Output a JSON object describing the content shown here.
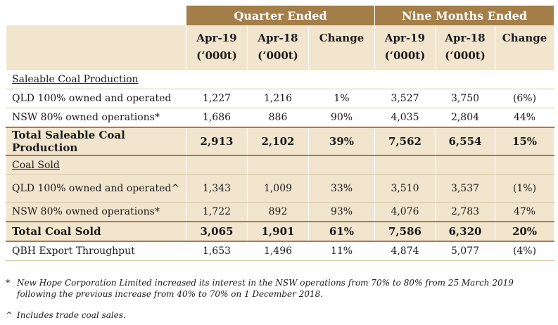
{
  "header": {
    "quarter_ended": "Quarter Ended",
    "nine_months_ended": "Nine Months Ended",
    "columns": [
      {
        "line1": "Apr-19",
        "line2": "(‘000t)"
      },
      {
        "line1": "Apr-18",
        "line2": "(‘000t)"
      },
      {
        "line1": "Change",
        "line2": ""
      },
      {
        "line1": "Apr-19",
        "line2": "(‘000t)"
      },
      {
        "line1": "Apr-18",
        "line2": "(‘000t)"
      },
      {
        "line1": "Change",
        "line2": ""
      }
    ]
  },
  "sections": {
    "saleable_heading": "Saleable Coal Production",
    "coal_sold_heading": "Coal Sold"
  },
  "rows": {
    "prod_qld": {
      "label": "QLD 100% owned and operated",
      "values": [
        "1,227",
        "1,216",
        "1%",
        "3,527",
        "3,750",
        "(6%)"
      ]
    },
    "prod_nsw": {
      "label": "NSW  80% owned operations*",
      "values": [
        "1,686",
        "886",
        "90%",
        "4,035",
        "2,804",
        "44%"
      ]
    },
    "prod_total": {
      "label": "Total Saleable Coal Production",
      "values": [
        "2,913",
        "2,102",
        "39%",
        "7,562",
        "6,554",
        "15%"
      ]
    },
    "sold_qld": {
      "label": "QLD 100% owned and operated^",
      "values": [
        "1,343",
        "1,009",
        "33%",
        "3,510",
        "3,537",
        "(1%)"
      ]
    },
    "sold_nsw": {
      "label": "NSW  80% owned operations*",
      "values": [
        "1,722",
        "892",
        "93%",
        "4,076",
        "2,783",
        "47%"
      ]
    },
    "sold_total": {
      "label": "Total Coal Sold",
      "values": [
        "3,065",
        "1,901",
        "61%",
        "7,586",
        "6,320",
        "20%"
      ]
    },
    "qbh": {
      "label": "QBH Export Throughput",
      "values": [
        "1,653",
        "1,496",
        "11%",
        "4,874",
        "5,077",
        "(4%)"
      ]
    }
  },
  "footnotes": [
    {
      "mark": "*",
      "text": "New Hope Corporation Limited increased its interest in the NSW operations from 70% to 80% from 25 March 2019 following the previous increase from 40% to 70% on 1 December 2018."
    },
    {
      "mark": "^",
      "text": "Includes trade coal sales."
    }
  ],
  "colors": {
    "header_brown": "#a47e49",
    "shade_beige": "#f1e5ce",
    "rule": "#d7c7a6"
  }
}
